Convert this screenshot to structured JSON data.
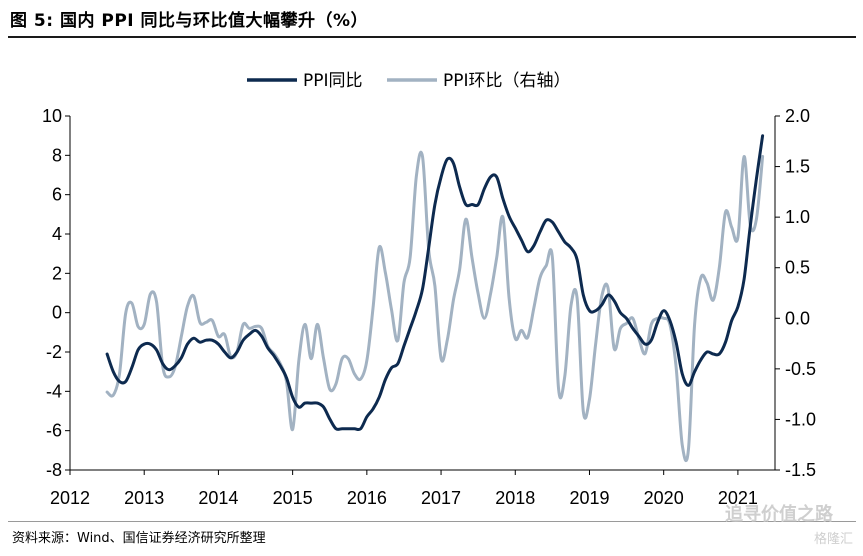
{
  "figure": {
    "title": "图 5: 国内 PPI 同比与环比值大幅攀升（%）",
    "source": "资料来源：Wind、国信证券经济研究所整理",
    "watermark": "追寻价值之路",
    "watermark_sub": "格隆汇"
  },
  "chart_data": {
    "type": "line",
    "colors": {
      "PPI同比": "#0d2a4f",
      "PPI环比（右轴）": "#a2b2c2"
    },
    "legend_position": "top-center",
    "grid": false,
    "x_ticks": [
      "2012",
      "2013",
      "2014",
      "2015",
      "2016",
      "2017",
      "2018",
      "2019",
      "2020",
      "2021"
    ],
    "y_left": {
      "lim": [
        -8,
        10
      ],
      "ticks": [
        "10",
        "8",
        "6",
        "4",
        "2",
        "0",
        "-2",
        "-4",
        "-6",
        "-8"
      ],
      "tick_values": [
        10,
        8,
        6,
        4,
        2,
        0,
        -2,
        -4,
        -6,
        -8
      ]
    },
    "y_right": {
      "lim": [
        -1.5,
        2.0
      ],
      "ticks": [
        "2.0",
        "1.5",
        "1.0",
        "0.5",
        "0.0",
        "-0.5",
        "-1.0",
        "-1.5"
      ],
      "tick_values": [
        2.0,
        1.5,
        1.0,
        0.5,
        0.0,
        -0.5,
        -1.0,
        -1.5
      ]
    },
    "series": [
      {
        "name": "PPI同比",
        "axis": "left",
        "x": [
          "2012-07",
          "2012-08",
          "2012-09",
          "2012-10",
          "2012-11",
          "2012-12",
          "2013-01",
          "2013-02",
          "2013-03",
          "2013-04",
          "2013-05",
          "2013-06",
          "2013-07",
          "2013-08",
          "2013-09",
          "2013-10",
          "2013-11",
          "2013-12",
          "2014-01",
          "2014-02",
          "2014-03",
          "2014-04",
          "2014-05",
          "2014-06",
          "2014-07",
          "2014-08",
          "2014-09",
          "2014-10",
          "2014-11",
          "2014-12",
          "2015-01",
          "2015-02",
          "2015-03",
          "2015-04",
          "2015-05",
          "2015-06",
          "2015-07",
          "2015-08",
          "2015-09",
          "2015-10",
          "2015-11",
          "2015-12",
          "2016-01",
          "2016-02",
          "2016-03",
          "2016-04",
          "2016-05",
          "2016-06",
          "2016-07",
          "2016-08",
          "2016-09",
          "2016-10",
          "2016-11",
          "2016-12",
          "2017-01",
          "2017-02",
          "2017-03",
          "2017-04",
          "2017-05",
          "2017-06",
          "2017-07",
          "2017-08",
          "2017-09",
          "2017-10",
          "2017-11",
          "2017-12",
          "2018-01",
          "2018-02",
          "2018-03",
          "2018-04",
          "2018-05",
          "2018-06",
          "2018-07",
          "2018-08",
          "2018-09",
          "2018-10",
          "2018-11",
          "2018-12",
          "2019-01",
          "2019-02",
          "2019-03",
          "2019-04",
          "2019-05",
          "2019-06",
          "2019-07",
          "2019-08",
          "2019-09",
          "2019-10",
          "2019-11",
          "2019-12",
          "2020-01",
          "2020-02",
          "2020-03",
          "2020-04",
          "2020-05",
          "2020-06",
          "2020-07",
          "2020-08",
          "2020-09",
          "2020-10",
          "2020-11",
          "2020-12",
          "2021-01",
          "2021-02",
          "2021-03",
          "2021-04",
          "2021-05"
        ],
        "values": [
          -2.1,
          -3.0,
          -3.5,
          -3.5,
          -2.8,
          -1.9,
          -1.6,
          -1.6,
          -1.9,
          -2.6,
          -2.9,
          -2.7,
          -2.3,
          -1.6,
          -1.3,
          -1.5,
          -1.4,
          -1.4,
          -1.6,
          -2.0,
          -2.3,
          -2.0,
          -1.4,
          -1.1,
          -0.9,
          -1.2,
          -1.8,
          -2.2,
          -2.7,
          -3.3,
          -4.3,
          -4.8,
          -4.6,
          -4.6,
          -4.6,
          -4.8,
          -5.4,
          -5.9,
          -5.9,
          -5.9,
          -5.9,
          -5.9,
          -5.3,
          -4.9,
          -4.3,
          -3.4,
          -2.8,
          -2.6,
          -1.7,
          -0.8,
          0.1,
          1.2,
          3.3,
          5.5,
          6.9,
          7.8,
          7.6,
          6.4,
          5.5,
          5.5,
          5.5,
          6.3,
          6.9,
          6.9,
          5.8,
          4.9,
          4.3,
          3.7,
          3.1,
          3.4,
          4.1,
          4.7,
          4.6,
          4.1,
          3.6,
          3.3,
          2.7,
          0.9,
          0.1,
          0.1,
          0.4,
          0.9,
          0.6,
          0.0,
          -0.3,
          -0.8,
          -1.2,
          -1.6,
          -1.4,
          -0.5,
          0.1,
          -0.4,
          -1.5,
          -3.1,
          -3.7,
          -3.0,
          -2.4,
          -2.0,
          -2.1,
          -2.1,
          -1.5,
          -0.4,
          0.3,
          1.7,
          4.4,
          6.8,
          9.0
        ]
      },
      {
        "name": "PPI环比（右轴）",
        "axis": "right",
        "x": [
          "2012-07",
          "2012-08",
          "2012-09",
          "2012-10",
          "2012-11",
          "2012-12",
          "2013-01",
          "2013-02",
          "2013-03",
          "2013-04",
          "2013-05",
          "2013-06",
          "2013-07",
          "2013-08",
          "2013-09",
          "2013-10",
          "2013-11",
          "2013-12",
          "2014-01",
          "2014-02",
          "2014-03",
          "2014-04",
          "2014-05",
          "2014-06",
          "2014-07",
          "2014-08",
          "2014-09",
          "2014-10",
          "2014-11",
          "2014-12",
          "2015-01",
          "2015-02",
          "2015-03",
          "2015-04",
          "2015-05",
          "2015-06",
          "2015-07",
          "2015-08",
          "2015-09",
          "2015-10",
          "2015-11",
          "2015-12",
          "2016-01",
          "2016-02",
          "2016-03",
          "2016-04",
          "2016-05",
          "2016-06",
          "2016-07",
          "2016-08",
          "2016-09",
          "2016-10",
          "2016-11",
          "2016-12",
          "2017-01",
          "2017-02",
          "2017-03",
          "2017-04",
          "2017-05",
          "2017-06",
          "2017-07",
          "2017-08",
          "2017-09",
          "2017-10",
          "2017-11",
          "2017-12",
          "2018-01",
          "2018-02",
          "2018-03",
          "2018-04",
          "2018-05",
          "2018-06",
          "2018-07",
          "2018-08",
          "2018-09",
          "2018-10",
          "2018-11",
          "2018-12",
          "2019-01",
          "2019-02",
          "2019-03",
          "2019-04",
          "2019-05",
          "2019-06",
          "2019-07",
          "2019-08",
          "2019-09",
          "2019-10",
          "2019-11",
          "2019-12",
          "2020-01",
          "2020-02",
          "2020-03",
          "2020-04",
          "2020-05",
          "2020-06",
          "2020-07",
          "2020-08",
          "2020-09",
          "2020-10",
          "2020-11",
          "2020-12",
          "2021-01",
          "2021-02",
          "2021-03",
          "2021-04",
          "2021-05"
        ],
        "values": [
          -0.73,
          -0.76,
          -0.55,
          0.05,
          0.15,
          -0.08,
          -0.06,
          0.24,
          0.16,
          -0.48,
          -0.58,
          -0.48,
          -0.18,
          0.12,
          0.22,
          -0.04,
          -0.04,
          -0.02,
          -0.18,
          -0.16,
          -0.38,
          -0.33,
          -0.06,
          -0.1,
          -0.08,
          -0.1,
          -0.28,
          -0.35,
          -0.45,
          -0.62,
          -1.1,
          -0.42,
          -0.06,
          -0.4,
          -0.06,
          -0.4,
          -0.7,
          -0.65,
          -0.4,
          -0.4,
          -0.55,
          -0.6,
          -0.42,
          0.1,
          0.7,
          0.45,
          0.08,
          -0.22,
          0.35,
          0.6,
          1.4,
          1.6,
          0.68,
          0.32,
          -0.4,
          -0.22,
          0.18,
          0.48,
          0.98,
          0.6,
          0.24,
          0.0,
          0.24,
          0.6,
          1.0,
          0.2,
          -0.2,
          -0.12,
          -0.19,
          0.1,
          0.4,
          0.52,
          0.6,
          -0.7,
          -0.58,
          0.12,
          0.2,
          -0.92,
          -0.8,
          -0.25,
          0.22,
          0.3,
          -0.3,
          -0.1,
          -0.05,
          0.0,
          -0.2,
          -0.35,
          -0.06,
          0.0,
          0.0,
          -0.06,
          -0.48,
          -1.25,
          -1.3,
          -0.06,
          0.4,
          0.35,
          0.18,
          0.5,
          1.05,
          0.9,
          0.8,
          1.6,
          0.92,
          0.98,
          1.6
        ]
      }
    ]
  }
}
